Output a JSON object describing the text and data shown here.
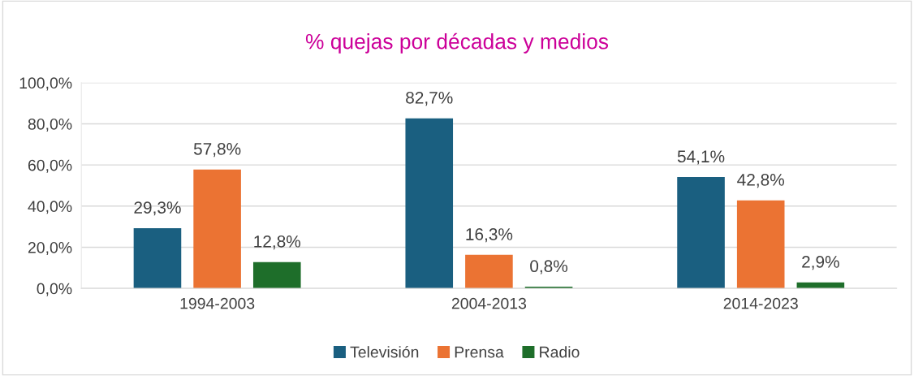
{
  "chart_data": {
    "type": "bar",
    "title": "% quejas por décadas y medios",
    "categories": [
      "1994-2003",
      "2004-2013",
      "2014-2023"
    ],
    "series": [
      {
        "name": "Televisión",
        "color": "#1a5f80",
        "values": [
          29.3,
          82.7,
          54.1
        ],
        "value_labels": [
          "29,3%",
          "82,7%",
          "54,1%"
        ]
      },
      {
        "name": "Prensa",
        "color": "#eb7333",
        "values": [
          57.8,
          16.3,
          42.8
        ],
        "value_labels": [
          "57,8%",
          "16,3%",
          "42,8%"
        ]
      },
      {
        "name": "Radio",
        "color": "#1e6e2a",
        "values": [
          12.8,
          0.8,
          2.9
        ],
        "value_labels": [
          "12,8%",
          "0,8%",
          "2,9%"
        ]
      }
    ],
    "ylim": [
      0,
      100
    ],
    "yticks": [
      {
        "value": 0,
        "label": "0,0%"
      },
      {
        "value": 20,
        "label": "20,0%"
      },
      {
        "value": 40,
        "label": "40,0%"
      },
      {
        "value": 60,
        "label": "60,0%"
      },
      {
        "value": 80,
        "label": "80,0%"
      },
      {
        "value": 100,
        "label": "100,0%"
      }
    ],
    "grid": "y",
    "legend": "bottom"
  }
}
